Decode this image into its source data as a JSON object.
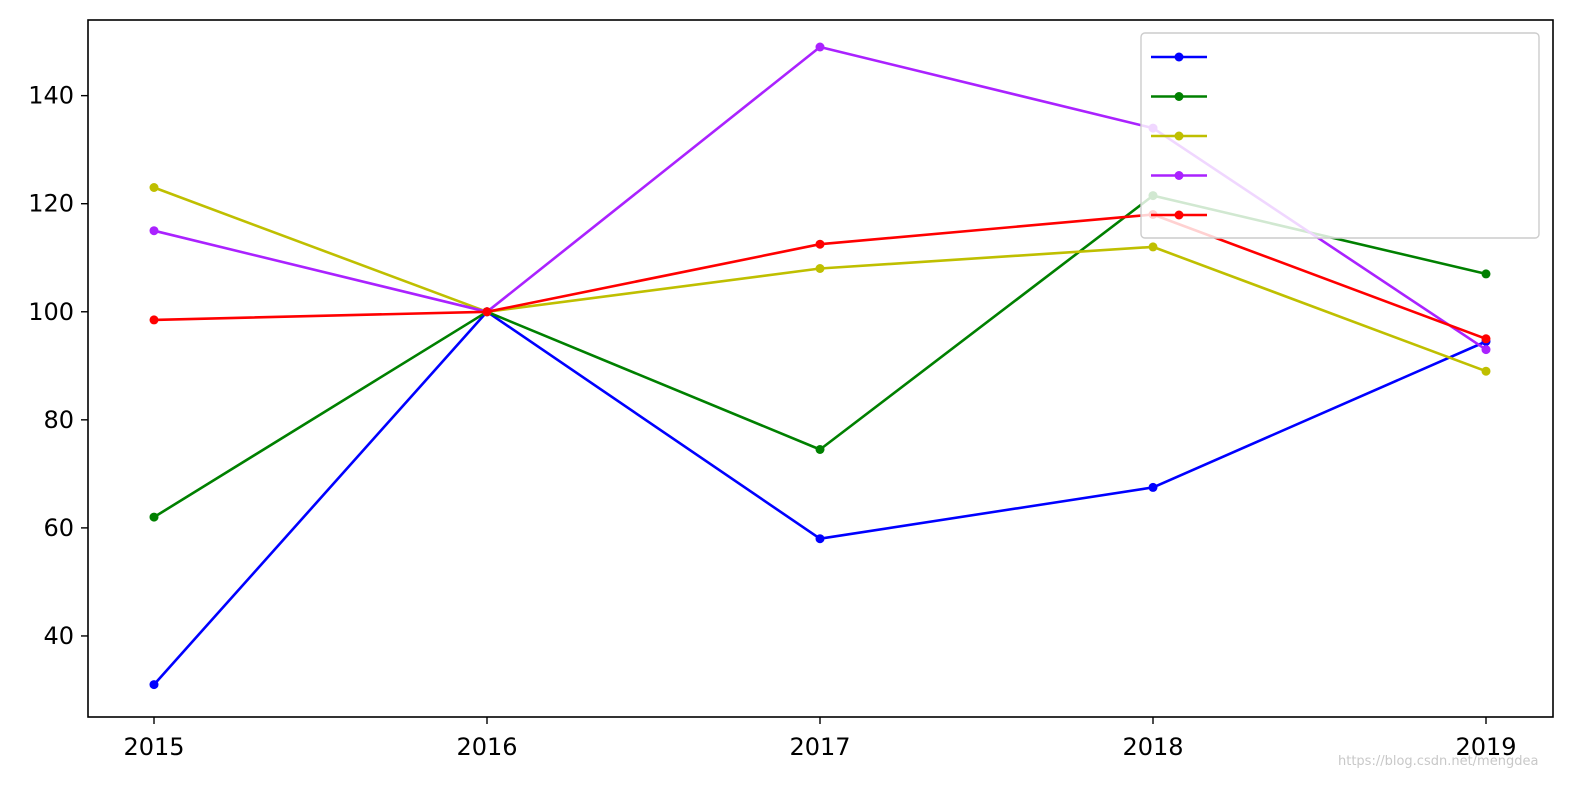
{
  "chart_data": {
    "type": "line",
    "title": "",
    "xlabel": "",
    "ylabel": "",
    "categories": [
      "2015",
      "2016",
      "2017",
      "2018",
      "2019"
    ],
    "yticks": [
      40,
      60,
      80,
      100,
      120,
      140
    ],
    "ylim": [
      25,
      154
    ],
    "grid": false,
    "legend_position": "top-right",
    "series": [
      {
        "name": "",
        "color": "#0000ff",
        "values": [
          31,
          100,
          58,
          67.5,
          94.5
        ]
      },
      {
        "name": "",
        "color": "#008000",
        "values": [
          62,
          100,
          74.5,
          121.5,
          107
        ]
      },
      {
        "name": "",
        "color": "#bfbf00",
        "values": [
          123,
          100,
          108,
          112,
          89
        ]
      },
      {
        "name": "",
        "color": "#aa22ff",
        "values": [
          115,
          100,
          149,
          134,
          93
        ]
      },
      {
        "name": "",
        "color": "#ff0000",
        "values": [
          98.5,
          100,
          112.5,
          118,
          95
        ]
      }
    ]
  },
  "watermark": "https://blog.csdn.net/mengdea"
}
